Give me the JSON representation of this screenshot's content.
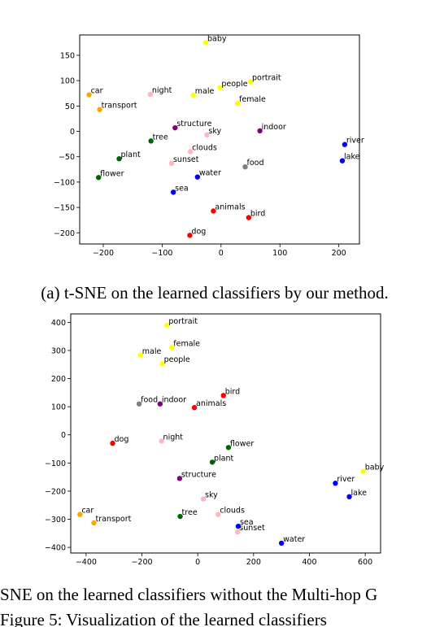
{
  "captions": {
    "a": "(a) t-SNE on the learned classifiers by our method.",
    "b": "SNE on the learned classifiers without the Multi-hop G",
    "figure": "Figure 5: Visualization of the learned classifiers"
  },
  "colors": {
    "yellow": "#ffff00",
    "pink": "#ffb6c1",
    "orange": "#ffa500",
    "purple": "#800080",
    "green": "#006400",
    "blue": "#0000ff",
    "gray": "#808080",
    "red": "#ff0000"
  },
  "chart_data": [
    {
      "type": "scatter",
      "xlim": [
        -240,
        235
      ],
      "ylim": [
        -222,
        190
      ],
      "xticks": [
        -200,
        -100,
        0,
        100,
        200
      ],
      "yticks": [
        150,
        100,
        50,
        0,
        -50,
        -100,
        -150,
        -200
      ],
      "xtick_labels": [
        "−200",
        "−100",
        "0",
        "100",
        "200"
      ],
      "ytick_labels": [
        "150",
        "100",
        "50",
        "0",
        "−50",
        "−100",
        "−150",
        "−200"
      ],
      "grid": false,
      "points": [
        {
          "label": "baby",
          "x": -26,
          "y": 175,
          "color": "yellow"
        },
        {
          "label": "portrait",
          "x": 50,
          "y": 98,
          "color": "yellow"
        },
        {
          "label": "people",
          "x": -2,
          "y": 86,
          "color": "yellow"
        },
        {
          "label": "male",
          "x": -47,
          "y": 71,
          "color": "yellow"
        },
        {
          "label": "female",
          "x": 28,
          "y": 55,
          "color": "yellow"
        },
        {
          "label": "car",
          "x": -224,
          "y": 72,
          "color": "orange"
        },
        {
          "label": "transport",
          "x": -206,
          "y": 43,
          "color": "orange"
        },
        {
          "label": "night",
          "x": -120,
          "y": 73,
          "color": "pink"
        },
        {
          "label": "structure",
          "x": -78,
          "y": 7,
          "color": "purple"
        },
        {
          "label": "sky",
          "x": -24,
          "y": -7,
          "color": "pink"
        },
        {
          "label": "indoor",
          "x": 66,
          "y": 1,
          "color": "purple"
        },
        {
          "label": "tree",
          "x": -119,
          "y": -19,
          "color": "green"
        },
        {
          "label": "river",
          "x": 210,
          "y": -26,
          "color": "blue"
        },
        {
          "label": "clouds",
          "x": -52,
          "y": -40,
          "color": "pink"
        },
        {
          "label": "plant",
          "x": -173,
          "y": -54,
          "color": "green"
        },
        {
          "label": "lake",
          "x": 206,
          "y": -58,
          "color": "blue"
        },
        {
          "label": "sunset",
          "x": -84,
          "y": -63,
          "color": "pink"
        },
        {
          "label": "food",
          "x": 41,
          "y": -70,
          "color": "gray"
        },
        {
          "label": "flower",
          "x": -208,
          "y": -91,
          "color": "green"
        },
        {
          "label": "water",
          "x": -40,
          "y": -90,
          "color": "blue"
        },
        {
          "label": "sea",
          "x": -81,
          "y": -120,
          "color": "blue"
        },
        {
          "label": "animals",
          "x": -13,
          "y": -157,
          "color": "red"
        },
        {
          "label": "bird",
          "x": 47,
          "y": -170,
          "color": "red"
        },
        {
          "label": "dog",
          "x": -53,
          "y": -205,
          "color": "red"
        }
      ]
    },
    {
      "type": "scatter",
      "xlim": [
        -455,
        655
      ],
      "ylim": [
        -420,
        430
      ],
      "xticks": [
        -400,
        -200,
        0,
        200,
        400,
        600
      ],
      "yticks": [
        400,
        300,
        200,
        100,
        0,
        -100,
        -200,
        -300,
        -400
      ],
      "xtick_labels": [
        "−400",
        "−200",
        "0",
        "200",
        "400",
        "600"
      ],
      "ytick_labels": [
        "400",
        "300",
        "200",
        "100",
        "0",
        "−100",
        "−200",
        "−300",
        "−400"
      ],
      "grid": false,
      "points": [
        {
          "label": "portrait",
          "x": -110,
          "y": 390,
          "color": "yellow"
        },
        {
          "label": "female",
          "x": -93,
          "y": 310,
          "color": "yellow"
        },
        {
          "label": "male",
          "x": -205,
          "y": 283,
          "color": "yellow"
        },
        {
          "label": "people",
          "x": -127,
          "y": 253,
          "color": "yellow"
        },
        {
          "label": "bird",
          "x": 92,
          "y": 140,
          "color": "red"
        },
        {
          "label": "food",
          "x": -210,
          "y": 110,
          "color": "gray"
        },
        {
          "label": "indoor",
          "x": -135,
          "y": 110,
          "color": "purple"
        },
        {
          "label": "animals",
          "x": -12,
          "y": 97,
          "color": "red"
        },
        {
          "label": "dog",
          "x": -305,
          "y": -30,
          "color": "red"
        },
        {
          "label": "night",
          "x": -130,
          "y": -22,
          "color": "pink"
        },
        {
          "label": "flower",
          "x": 110,
          "y": -45,
          "color": "green"
        },
        {
          "label": "plant",
          "x": 52,
          "y": -97,
          "color": "green"
        },
        {
          "label": "baby",
          "x": 593,
          "y": -130,
          "color": "yellow"
        },
        {
          "label": "structure",
          "x": -65,
          "y": -155,
          "color": "purple"
        },
        {
          "label": "river",
          "x": 493,
          "y": -172,
          "color": "blue"
        },
        {
          "label": "lake",
          "x": 543,
          "y": -220,
          "color": "blue"
        },
        {
          "label": "sky",
          "x": 20,
          "y": -228,
          "color": "pink"
        },
        {
          "label": "car",
          "x": -422,
          "y": -283,
          "color": "orange"
        },
        {
          "label": "clouds",
          "x": 73,
          "y": -283,
          "color": "pink"
        },
        {
          "label": "tree",
          "x": -63,
          "y": -290,
          "color": "green"
        },
        {
          "label": "transport",
          "x": -372,
          "y": -313,
          "color": "orange"
        },
        {
          "label": "sea",
          "x": 145,
          "y": -325,
          "color": "blue"
        },
        {
          "label": "sunset",
          "x": 143,
          "y": -345,
          "color": "pink"
        },
        {
          "label": "water",
          "x": 300,
          "y": -385,
          "color": "blue"
        }
      ]
    }
  ]
}
